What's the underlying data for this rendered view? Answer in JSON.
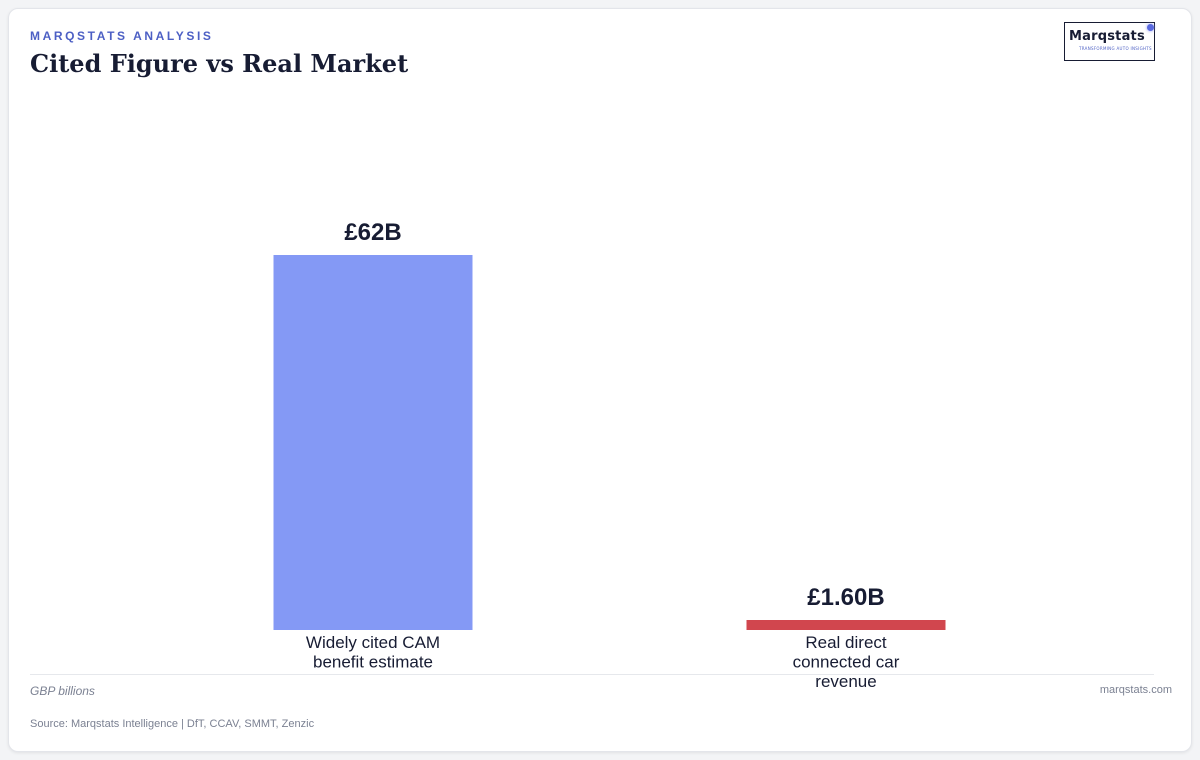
{
  "header": {
    "eyebrow": "MARQSTATS ANALYSIS",
    "title": "Cited Figure vs Real Market"
  },
  "logo": {
    "wordmark": "Marqstats",
    "tagline": "TRANSFORMING AUTO INSIGHTS",
    "accent_color": "#5a6ae0"
  },
  "chart_data": {
    "type": "bar",
    "categories": [
      [
        "Widely cited CAM",
        "benefit estimate"
      ],
      [
        "Real direct",
        "connected car",
        "revenue"
      ]
    ],
    "values": [
      62,
      1.6
    ],
    "value_labels": [
      "£62B",
      "£1.60B"
    ],
    "colors": [
      "#8499f5",
      "#d1464e"
    ],
    "ylim": [
      0,
      62
    ],
    "grid": false,
    "title": "",
    "xlabel": "",
    "ylabel": ""
  },
  "footer": {
    "unit_note": "GBP billions",
    "site": "marqstats.com",
    "source": "Source: Marqstats Intelligence | DfT, CCAV, SMMT, Zenzic"
  }
}
